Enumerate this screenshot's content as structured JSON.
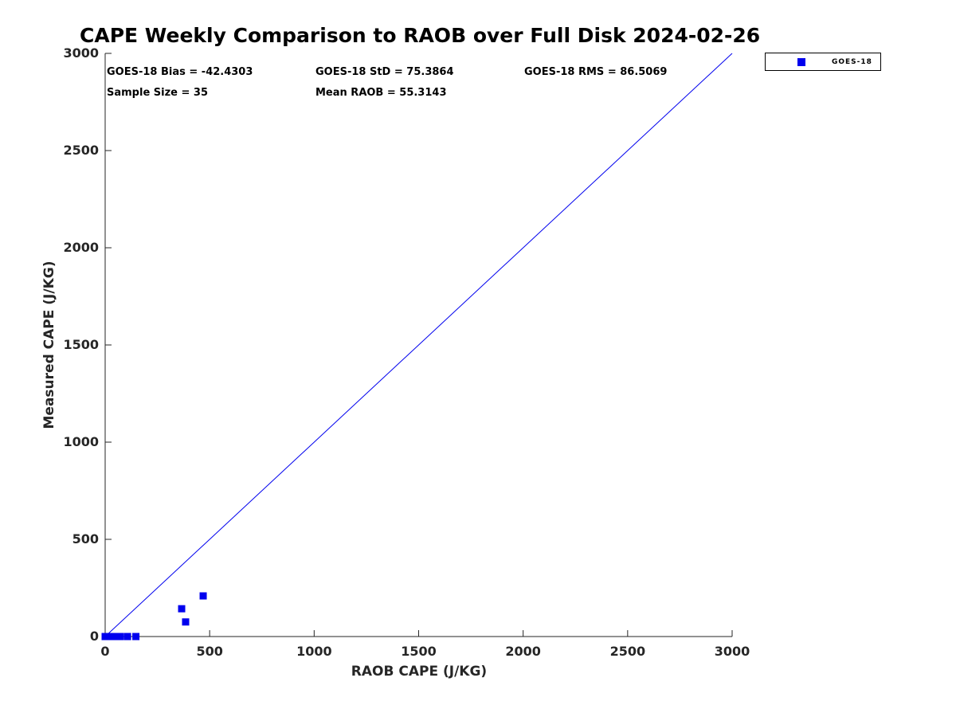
{
  "page": {
    "background": "#ffffff"
  },
  "stats": {
    "bias": "GOES-18 Bias = -42.4303",
    "std": "GOES-18 StD = 75.3864",
    "rms": "GOES-18 RMS = 86.5069",
    "sample_size": "Sample Size = 35",
    "mean_raob": "Mean RAOB = 55.3143"
  },
  "chart_data": {
    "type": "scatter",
    "title": "CAPE Weekly Comparison to RAOB over Full Disk 2024-02-26",
    "xlabel": "RAOB CAPE (J/KG)",
    "ylabel": "Measured CAPE (J/KG)",
    "xlim": [
      0,
      3000
    ],
    "ylim": [
      0,
      3000
    ],
    "xticks": [
      0,
      500,
      1000,
      1500,
      2000,
      2500,
      3000
    ],
    "yticks": [
      0,
      500,
      1000,
      1500,
      2000,
      2500,
      3000
    ],
    "grid": false,
    "axis_color": "#262626",
    "accent_color": "#0000ee",
    "legend": {
      "position": "outside-top-right",
      "entries": [
        {
          "label": "GOES-18",
          "marker": "filled-square",
          "color": "#0000ee"
        }
      ]
    },
    "reference_line": {
      "meaning": "1:1 identity line",
      "from": [
        0,
        0
      ],
      "to": [
        3000,
        3000
      ],
      "color": "#0000ee"
    },
    "series": [
      {
        "name": "GOES-18",
        "marker": "filled-square",
        "marker_size_px": 9,
        "color": "#0000ee",
        "points": [
          [
            0,
            0
          ],
          [
            3,
            0
          ],
          [
            6,
            0
          ],
          [
            9,
            0
          ],
          [
            12,
            0
          ],
          [
            15,
            0
          ],
          [
            18,
            0
          ],
          [
            21,
            0
          ],
          [
            25,
            0
          ],
          [
            29,
            0
          ],
          [
            33,
            0
          ],
          [
            37,
            0
          ],
          [
            41,
            0
          ],
          [
            45,
            0
          ],
          [
            49,
            0
          ],
          [
            53,
            0
          ],
          [
            57,
            0
          ],
          [
            61,
            0
          ],
          [
            66,
            0
          ],
          [
            72,
            0
          ],
          [
            107,
            0
          ],
          [
            147,
            0
          ],
          [
            366,
            143
          ],
          [
            385,
            75
          ],
          [
            469,
            209
          ]
        ]
      }
    ]
  }
}
